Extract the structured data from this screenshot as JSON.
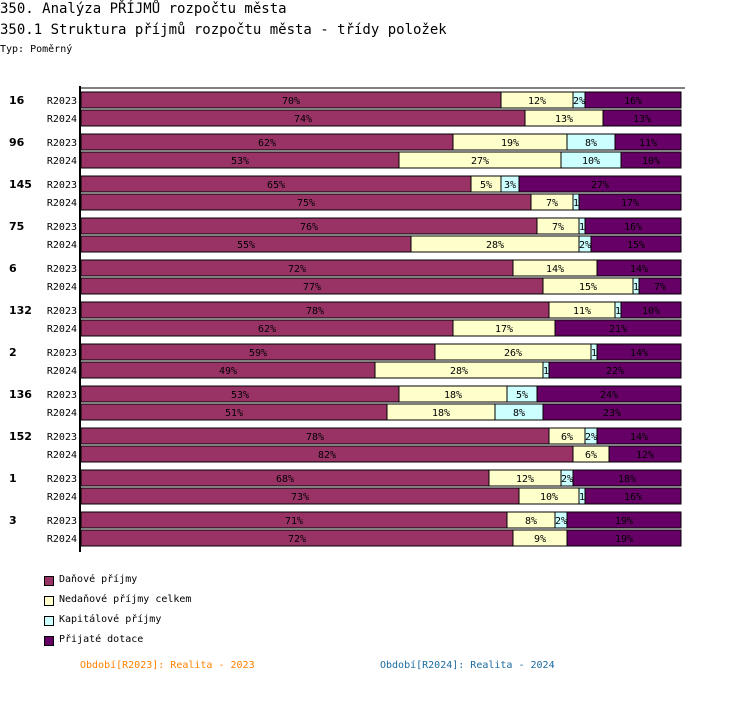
{
  "header": {
    "title": "350. Analýza PŘÍJMŮ rozpočtu města",
    "subtitle": "350.1 Struktura příjmů rozpočtu města - třídy položek",
    "type_label": "Typ: Poměrný"
  },
  "legend": [
    {
      "label": "Daňové příjmy",
      "color": "#993366"
    },
    {
      "label": "Nedaňové příjmy celkem",
      "color": "#ffffcc"
    },
    {
      "label": "Kapitálové příjmy",
      "color": "#ccffff"
    },
    {
      "label": "Přijaté dotace",
      "color": "#660066"
    }
  ],
  "periods": [
    {
      "label": "Období[R2023]: Realita - 2023",
      "color": "#ff8000"
    },
    {
      "label": "Období[R2024]: Realita - 2024",
      "color": "#1a6aa0"
    }
  ],
  "chart_data": {
    "type": "bar",
    "orientation": "horizontal",
    "stacked": "percent",
    "title": "350.1 Struktura příjmů rozpočtu města - třídy položek",
    "xlabel": "",
    "ylabel": "",
    "xlim": [
      0,
      100
    ],
    "grid": false,
    "legend_position": "bottom-left",
    "series_names": [
      "Daňové příjmy",
      "Nedaňové příjmy celkem",
      "Kapitálové příjmy",
      "Přijaté dotace"
    ],
    "series_colors": [
      "#993366",
      "#ffffcc",
      "#ccffff",
      "#660066"
    ],
    "groups": [
      {
        "name": "16",
        "rows": [
          {
            "period": "R2023",
            "values": [
              70,
              12,
              2,
              16
            ],
            "labels": [
              "70%",
              "12%",
              "2%",
              "16%"
            ]
          },
          {
            "period": "R2024",
            "values": [
              74,
              13,
              0,
              13
            ],
            "labels": [
              "74%",
              "13%",
              "",
              "13%"
            ]
          }
        ]
      },
      {
        "name": "96",
        "rows": [
          {
            "period": "R2023",
            "values": [
              62,
              19,
              8,
              11
            ],
            "labels": [
              "62%",
              "19%",
              "8%",
              "11%"
            ]
          },
          {
            "period": "R2024",
            "values": [
              53,
              27,
              10,
              10
            ],
            "labels": [
              "53%",
              "27%",
              "10%",
              "10%"
            ]
          }
        ]
      },
      {
        "name": "145",
        "rows": [
          {
            "period": "R2023",
            "values": [
              65,
              5,
              3,
              27
            ],
            "labels": [
              "65%",
              "5%",
              "3%",
              "27%"
            ]
          },
          {
            "period": "R2024",
            "values": [
              75,
              7,
              1,
              17
            ],
            "labels": [
              "75%",
              "7%",
              "1",
              "17%"
            ]
          }
        ]
      },
      {
        "name": "75",
        "rows": [
          {
            "period": "R2023",
            "values": [
              76,
              7,
              1,
              16
            ],
            "labels": [
              "76%",
              "7%",
              "1",
              "16%"
            ]
          },
          {
            "period": "R2024",
            "values": [
              55,
              28,
              2,
              15
            ],
            "labels": [
              "55%",
              "28%",
              "2%",
              "15%"
            ]
          }
        ]
      },
      {
        "name": "6",
        "rows": [
          {
            "period": "R2023",
            "values": [
              72,
              14,
              0,
              14
            ],
            "labels": [
              "72%",
              "14%",
              "",
              "14%"
            ]
          },
          {
            "period": "R2024",
            "values": [
              77,
              15,
              1,
              7
            ],
            "labels": [
              "77%",
              "15%",
              "1",
              "7%"
            ]
          }
        ]
      },
      {
        "name": "132",
        "rows": [
          {
            "period": "R2023",
            "values": [
              78,
              11,
              1,
              10
            ],
            "labels": [
              "78%",
              "11%",
              "1",
              "10%"
            ]
          },
          {
            "period": "R2024",
            "values": [
              62,
              17,
              0,
              21
            ],
            "labels": [
              "62%",
              "17%",
              "",
              "21%"
            ]
          }
        ]
      },
      {
        "name": "2",
        "rows": [
          {
            "period": "R2023",
            "values": [
              59,
              26,
              1,
              14
            ],
            "labels": [
              "59%",
              "26%",
              "1",
              "14%"
            ]
          },
          {
            "period": "R2024",
            "values": [
              49,
              28,
              1,
              22
            ],
            "labels": [
              "49%",
              "28%",
              "1",
              "22%"
            ]
          }
        ]
      },
      {
        "name": "136",
        "rows": [
          {
            "period": "R2023",
            "values": [
              53,
              18,
              5,
              24
            ],
            "labels": [
              "53%",
              "18%",
              "5%",
              "24%"
            ]
          },
          {
            "period": "R2024",
            "values": [
              51,
              18,
              8,
              23
            ],
            "labels": [
              "51%",
              "18%",
              "8%",
              "23%"
            ]
          }
        ]
      },
      {
        "name": "152",
        "rows": [
          {
            "period": "R2023",
            "values": [
              78,
              6,
              2,
              14
            ],
            "labels": [
              "78%",
              "6%",
              "2%",
              "14%"
            ]
          },
          {
            "period": "R2024",
            "values": [
              82,
              6,
              0,
              12
            ],
            "labels": [
              "82%",
              "6%",
              "",
              "12%"
            ]
          }
        ]
      },
      {
        "name": "1",
        "rows": [
          {
            "period": "R2023",
            "values": [
              68,
              12,
              2,
              18
            ],
            "labels": [
              "68%",
              "12%",
              "2%",
              "18%"
            ]
          },
          {
            "period": "R2024",
            "values": [
              73,
              10,
              1,
              16
            ],
            "labels": [
              "73%",
              "10%",
              "1",
              "16%"
            ]
          }
        ]
      },
      {
        "name": "3",
        "rows": [
          {
            "period": "R2023",
            "values": [
              71,
              8,
              2,
              19
            ],
            "labels": [
              "71%",
              "8%",
              "2%",
              "19%"
            ]
          },
          {
            "period": "R2024",
            "values": [
              72,
              9,
              0,
              19
            ],
            "labels": [
              "72%",
              "9%",
              "",
              "19%"
            ]
          }
        ]
      }
    ]
  }
}
